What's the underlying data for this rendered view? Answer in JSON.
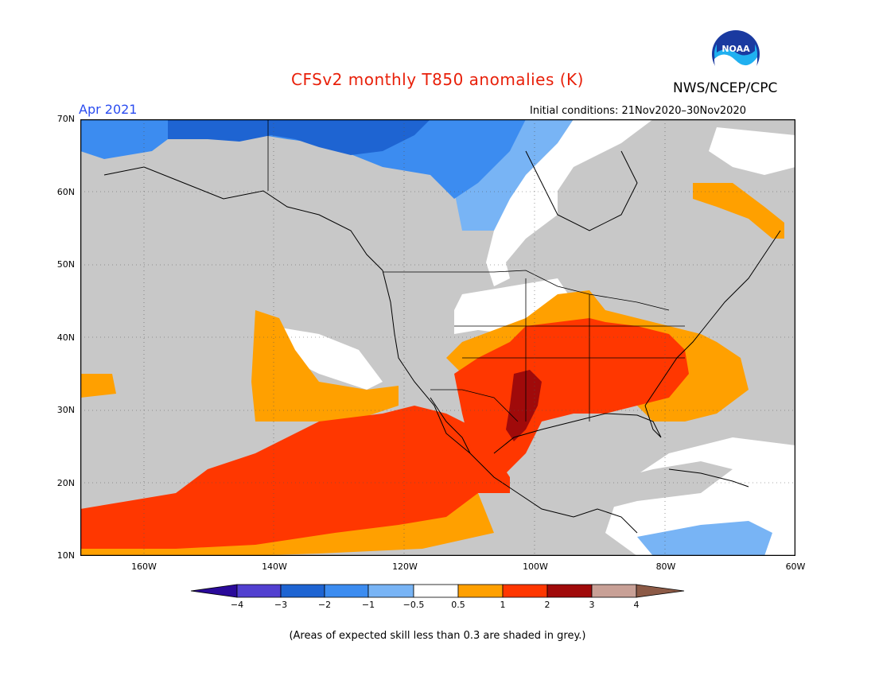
{
  "header": {
    "title": "CFSv2 monthly T850 anomalies (K)",
    "agency": "NWS/NCEP/CPC",
    "logo_text": "NOAA",
    "valid_month": "Apr 2021",
    "initial_conditions": "Initial conditions: 21Nov2020–30Nov2020"
  },
  "map": {
    "lat_labels": [
      "70N",
      "60N",
      "50N",
      "40N",
      "30N",
      "20N",
      "10N"
    ],
    "lon_labels": [
      "160W",
      "140W",
      "120W",
      "100W",
      "80W",
      "60W"
    ],
    "extent": {
      "lon": [
        -172,
        -60
      ],
      "lat": [
        10,
        70
      ]
    }
  },
  "colorbar": {
    "ticks": [
      "−4",
      "−3",
      "−2",
      "−1",
      "−0.5",
      "0.5",
      "1",
      "2",
      "3",
      "4"
    ],
    "colors": [
      "#2a0a9a",
      "#5240d0",
      "#1e64d2",
      "#3c8cf0",
      "#78b4f5",
      "#ffffff",
      "#ffa000",
      "#ff3700",
      "#a00a0a",
      "#c8a096",
      "#8c5a46"
    ]
  },
  "legend_colors": {
    "low_skill": "#c8c8c8",
    "neutral": "#ffffff",
    "a_0_5_1": "#ffa000",
    "a_1_2": "#ff3700",
    "a_2_3": "#a00a0a",
    "a_m1_m0_5": "#78b4f5",
    "a_m2_m1": "#3c8cf0",
    "a_m3_m2": "#1e64d2"
  },
  "footnote": "(Areas of expected skill less than 0.3 are shaded in grey.)"
}
